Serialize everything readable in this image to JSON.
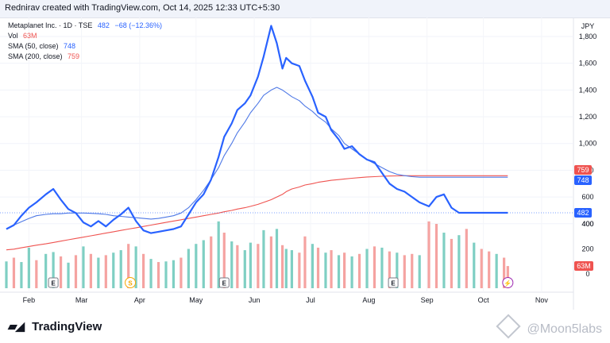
{
  "header": {
    "attribution": "Rednirav created with TradingView.com, Oct 14, 2025 12:33 UTC+5:30"
  },
  "legend": {
    "symbol": "Metaplanet Inc. · 1D · TSE",
    "price": "482",
    "change": "−68 (−12.36%)",
    "vol_label": "Vol",
    "vol_value": "63M",
    "sma50_label": "SMA (50, close)",
    "sma50_value": "748",
    "sma200_label": "SMA (200, close)",
    "sma200_value": "759"
  },
  "colors": {
    "price": "#2962ff",
    "sma50": "#4f79e6",
    "sma200": "#ef5350",
    "vol_up": "#7fcfc3",
    "vol_down": "#f5a3a1",
    "marker_dividend": "#f7a600",
    "marker_flash": "#9c27b0"
  },
  "footer": {
    "brand": "TradingView",
    "watermark": "@Moon5labs"
  },
  "chart_data": {
    "type": "line",
    "currency": "JPY",
    "x_labels": [
      "Feb",
      "Mar",
      "Apr",
      "May",
      "Jun",
      "Jul",
      "Aug",
      "Sep",
      "Oct",
      "Nov"
    ],
    "price_axis": {
      "ticks": [
        "1,800",
        "1,600",
        "1,400",
        "1,200",
        "1,000",
        "800",
        "600",
        "400"
      ],
      "ylim": [
        380,
        1920
      ]
    },
    "volume_axis": {
      "ticks": [
        "400",
        "200",
        "0"
      ],
      "unit": "M",
      "ylim": [
        0,
        450
      ]
    },
    "price_tags": [
      {
        "label": "759",
        "value": 759,
        "color": "#ef5350"
      },
      {
        "label": "748",
        "value": 748,
        "color": "#2962ff"
      },
      {
        "label": "482",
        "value": 482,
        "color": "#2962ff"
      }
    ],
    "volume_tag": {
      "label": "63M",
      "color": "#ef5350"
    },
    "x": [
      "2025-01-20",
      "2025-01-24",
      "2025-01-28",
      "2025-02-01",
      "2025-02-05",
      "2025-02-10",
      "2025-02-14",
      "2025-02-18",
      "2025-02-22",
      "2025-02-26",
      "2025-03-02",
      "2025-03-06",
      "2025-03-10",
      "2025-03-14",
      "2025-03-18",
      "2025-03-22",
      "2025-03-26",
      "2025-03-30",
      "2025-04-03",
      "2025-04-07",
      "2025-04-11",
      "2025-04-15",
      "2025-04-19",
      "2025-04-23",
      "2025-04-27",
      "2025-05-01",
      "2025-05-05",
      "2025-05-09",
      "2025-05-13",
      "2025-05-16",
      "2025-05-20",
      "2025-05-23",
      "2025-05-27",
      "2025-05-30",
      "2025-06-03",
      "2025-06-06",
      "2025-06-10",
      "2025-06-13",
      "2025-06-16",
      "2025-06-18",
      "2025-06-21",
      "2025-06-25",
      "2025-06-28",
      "2025-07-02",
      "2025-07-05",
      "2025-07-09",
      "2025-07-12",
      "2025-07-16",
      "2025-07-19",
      "2025-07-23",
      "2025-07-27",
      "2025-07-31",
      "2025-08-04",
      "2025-08-08",
      "2025-08-12",
      "2025-08-16",
      "2025-08-20",
      "2025-08-24",
      "2025-08-28",
      "2025-09-02",
      "2025-09-06",
      "2025-09-10",
      "2025-09-14",
      "2025-09-18",
      "2025-09-22",
      "2025-09-26",
      "2025-09-30",
      "2025-10-04",
      "2025-10-08",
      "2025-10-12",
      "2025-10-14"
    ],
    "series": [
      {
        "name": "Metaplanet Inc.",
        "values": [
          360,
          390,
          460,
          520,
          560,
          620,
          660,
          580,
          510,
          480,
          410,
          380,
          420,
          380,
          430,
          470,
          520,
          420,
          350,
          330,
          340,
          350,
          360,
          380,
          470,
          560,
          620,
          730,
          900,
          1050,
          1150,
          1250,
          1300,
          1360,
          1500,
          1650,
          1880,
          1750,
          1560,
          1640,
          1600,
          1580,
          1470,
          1350,
          1230,
          1200,
          1100,
          1030,
          960,
          980,
          920,
          880,
          860,
          780,
          700,
          660,
          640,
          600,
          560,
          530,
          600,
          620,
          520,
          482,
          482,
          482,
          482,
          482,
          482,
          482,
          482
        ]
      },
      {
        "name": "SMA (50, close)",
        "values": [
          360,
          390,
          415,
          440,
          460,
          470,
          475,
          475,
          480,
          480,
          480,
          478,
          475,
          470,
          460,
          455,
          450,
          445,
          440,
          435,
          440,
          450,
          460,
          480,
          520,
          580,
          650,
          730,
          820,
          910,
          1000,
          1080,
          1160,
          1230,
          1300,
          1360,
          1400,
          1420,
          1400,
          1380,
          1350,
          1320,
          1280,
          1240,
          1200,
          1160,
          1110,
          1060,
          1000,
          960,
          920,
          880,
          850,
          820,
          790,
          770,
          760,
          752,
          748,
          748,
          748,
          748,
          748,
          748,
          748,
          748,
          748,
          748,
          748,
          748,
          748
        ]
      },
      {
        "name": "SMA (200, close)",
        "values": [
          205,
          210,
          220,
          230,
          240,
          250,
          260,
          270,
          280,
          290,
          300,
          310,
          320,
          330,
          340,
          350,
          360,
          370,
          380,
          390,
          400,
          410,
          420,
          430,
          440,
          450,
          460,
          470,
          480,
          490,
          500,
          510,
          520,
          530,
          545,
          560,
          580,
          600,
          620,
          640,
          660,
          675,
          690,
          700,
          710,
          718,
          725,
          730,
          735,
          740,
          745,
          750,
          752,
          755,
          757,
          758,
          759,
          759,
          759,
          759,
          759,
          759,
          759,
          759,
          759,
          759,
          759,
          759,
          759,
          759,
          759
        ]
      }
    ],
    "volume": [
      100,
      130,
      95,
      210,
      110,
      160,
      175,
      140,
      90,
      150,
      220,
      160,
      130,
      150,
      170,
      190,
      240,
      220,
      160,
      120,
      95,
      100,
      110,
      130,
      200,
      240,
      270,
      300,
      420,
      330,
      260,
      230,
      190,
      250,
      240,
      350,
      300,
      360,
      230,
      200,
      190,
      170,
      300,
      240,
      210,
      170,
      190,
      150,
      170,
      140,
      160,
      200,
      220,
      210,
      180,
      170,
      150,
      160,
      150,
      420,
      400,
      330,
      280,
      310,
      360,
      250,
      200,
      180,
      160,
      130,
      63
    ],
    "volume_up": [
      true,
      false,
      true,
      true,
      false,
      true,
      true,
      false,
      true,
      false,
      true,
      false,
      true,
      false,
      true,
      true,
      false,
      true,
      false,
      true,
      false,
      true,
      true,
      false,
      true,
      true,
      true,
      false,
      true,
      false,
      true,
      false,
      true,
      true,
      false,
      true,
      false,
      true,
      false,
      true,
      true,
      false,
      false,
      true,
      false,
      true,
      false,
      true,
      false,
      true,
      false,
      true,
      false,
      true,
      false,
      true,
      false,
      false,
      true,
      false,
      false,
      true,
      false,
      true,
      false,
      true,
      false,
      false,
      true,
      false,
      false
    ],
    "event_markers": [
      {
        "label": "E",
        "date": "2025-02-14"
      },
      {
        "label": "S",
        "date": "2025-03-27"
      },
      {
        "label": "E",
        "date": "2025-05-16"
      },
      {
        "label": "E",
        "date": "2025-08-14"
      },
      {
        "label": "⚡",
        "date": "2025-10-14"
      }
    ]
  }
}
